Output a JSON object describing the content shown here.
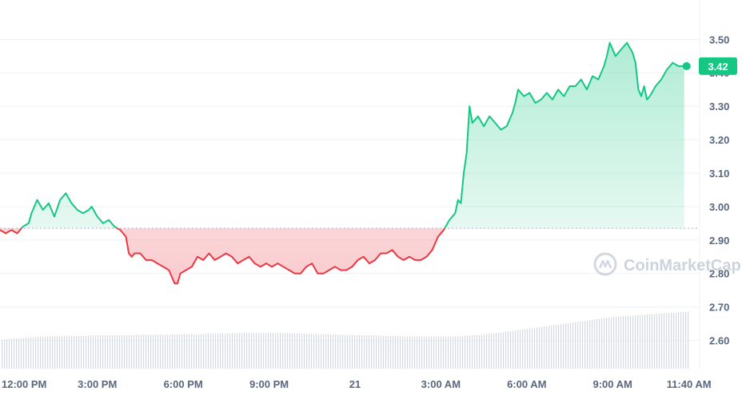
{
  "chart_data": {
    "type": "line",
    "y_ticks": [
      2.6,
      2.7,
      2.8,
      2.9,
      3.0,
      3.1,
      3.2,
      3.3,
      3.4,
      3.5
    ],
    "y_tick_labels": [
      "2.60",
      "2.70",
      "2.80",
      "2.90",
      "3.00",
      "3.10",
      "3.20",
      "3.30",
      "3.40",
      "3.50"
    ],
    "ylim": [
      2.52,
      3.57
    ],
    "x_ticks": [
      {
        "label": "12:00 PM",
        "hour": 0
      },
      {
        "label": "3:00 PM",
        "hour": 3
      },
      {
        "label": "6:00 PM",
        "hour": 6
      },
      {
        "label": "9:00 PM",
        "hour": 9
      },
      {
        "label": "21",
        "hour": 12
      },
      {
        "label": "3:00 AM",
        "hour": 15
      },
      {
        "label": "6:00 AM",
        "hour": 18
      },
      {
        "label": "9:00 AM",
        "hour": 21
      },
      {
        "label": "11:40 AM",
        "hour": 23.667
      }
    ],
    "xlim": [
      -0.4,
      23.9
    ],
    "baseline": 2.935,
    "current_price": 3.42,
    "current_price_label": "3.42",
    "above_color": "#16c784",
    "below_color": "#ea3943",
    "grid": true,
    "price_points": [
      [
        -0.4,
        2.93
      ],
      [
        -0.2,
        2.92
      ],
      [
        0.0,
        2.93
      ],
      [
        0.2,
        2.92
      ],
      [
        0.4,
        2.94
      ],
      [
        0.6,
        2.95
      ],
      [
        0.7,
        2.98
      ],
      [
        0.9,
        3.02
      ],
      [
        1.1,
        2.99
      ],
      [
        1.3,
        3.01
      ],
      [
        1.5,
        2.97
      ],
      [
        1.7,
        3.02
      ],
      [
        1.9,
        3.04
      ],
      [
        2.1,
        3.01
      ],
      [
        2.3,
        2.99
      ],
      [
        2.5,
        2.98
      ],
      [
        2.7,
        2.99
      ],
      [
        2.8,
        3.0
      ],
      [
        3.0,
        2.97
      ],
      [
        3.2,
        2.95
      ],
      [
        3.4,
        2.96
      ],
      [
        3.6,
        2.94
      ],
      [
        3.8,
        2.93
      ],
      [
        4.0,
        2.91
      ],
      [
        4.1,
        2.86
      ],
      [
        4.2,
        2.85
      ],
      [
        4.3,
        2.86
      ],
      [
        4.5,
        2.86
      ],
      [
        4.7,
        2.84
      ],
      [
        4.9,
        2.84
      ],
      [
        5.1,
        2.83
      ],
      [
        5.3,
        2.82
      ],
      [
        5.5,
        2.81
      ],
      [
        5.7,
        2.77
      ],
      [
        5.8,
        2.77
      ],
      [
        5.9,
        2.8
      ],
      [
        6.1,
        2.81
      ],
      [
        6.3,
        2.82
      ],
      [
        6.5,
        2.85
      ],
      [
        6.7,
        2.84
      ],
      [
        6.9,
        2.86
      ],
      [
        7.1,
        2.84
      ],
      [
        7.3,
        2.85
      ],
      [
        7.5,
        2.86
      ],
      [
        7.7,
        2.85
      ],
      [
        7.9,
        2.83
      ],
      [
        8.1,
        2.84
      ],
      [
        8.3,
        2.85
      ],
      [
        8.5,
        2.83
      ],
      [
        8.7,
        2.82
      ],
      [
        8.9,
        2.83
      ],
      [
        9.1,
        2.82
      ],
      [
        9.3,
        2.83
      ],
      [
        9.5,
        2.82
      ],
      [
        9.7,
        2.81
      ],
      [
        9.9,
        2.8
      ],
      [
        10.1,
        2.8
      ],
      [
        10.3,
        2.82
      ],
      [
        10.5,
        2.83
      ],
      [
        10.7,
        2.8
      ],
      [
        10.9,
        2.8
      ],
      [
        11.1,
        2.81
      ],
      [
        11.3,
        2.82
      ],
      [
        11.5,
        2.81
      ],
      [
        11.7,
        2.81
      ],
      [
        11.9,
        2.82
      ],
      [
        12.1,
        2.84
      ],
      [
        12.3,
        2.85
      ],
      [
        12.5,
        2.83
      ],
      [
        12.7,
        2.84
      ],
      [
        12.9,
        2.86
      ],
      [
        13.1,
        2.86
      ],
      [
        13.3,
        2.87
      ],
      [
        13.5,
        2.85
      ],
      [
        13.7,
        2.84
      ],
      [
        13.9,
        2.85
      ],
      [
        14.1,
        2.84
      ],
      [
        14.3,
        2.84
      ],
      [
        14.5,
        2.85
      ],
      [
        14.7,
        2.87
      ],
      [
        14.9,
        2.91
      ],
      [
        15.1,
        2.93
      ],
      [
        15.3,
        2.96
      ],
      [
        15.5,
        2.98
      ],
      [
        15.6,
        3.02
      ],
      [
        15.7,
        3.01
      ],
      [
        15.8,
        3.1
      ],
      [
        15.9,
        3.16
      ],
      [
        16.0,
        3.3
      ],
      [
        16.1,
        3.25
      ],
      [
        16.3,
        3.27
      ],
      [
        16.5,
        3.24
      ],
      [
        16.7,
        3.27
      ],
      [
        16.9,
        3.25
      ],
      [
        17.1,
        3.23
      ],
      [
        17.3,
        3.24
      ],
      [
        17.5,
        3.28
      ],
      [
        17.6,
        3.31
      ],
      [
        17.7,
        3.35
      ],
      [
        17.9,
        3.33
      ],
      [
        18.1,
        3.34
      ],
      [
        18.3,
        3.31
      ],
      [
        18.5,
        3.32
      ],
      [
        18.7,
        3.34
      ],
      [
        18.9,
        3.32
      ],
      [
        19.1,
        3.35
      ],
      [
        19.3,
        3.33
      ],
      [
        19.5,
        3.36
      ],
      [
        19.7,
        3.36
      ],
      [
        19.9,
        3.38
      ],
      [
        20.1,
        3.35
      ],
      [
        20.3,
        3.39
      ],
      [
        20.5,
        3.38
      ],
      [
        20.7,
        3.42
      ],
      [
        20.8,
        3.45
      ],
      [
        20.9,
        3.49
      ],
      [
        21.1,
        3.45
      ],
      [
        21.3,
        3.47
      ],
      [
        21.5,
        3.49
      ],
      [
        21.7,
        3.46
      ],
      [
        21.8,
        3.43
      ],
      [
        21.9,
        3.35
      ],
      [
        22.0,
        3.33
      ],
      [
        22.1,
        3.36
      ],
      [
        22.2,
        3.32
      ],
      [
        22.3,
        3.33
      ],
      [
        22.5,
        3.36
      ],
      [
        22.7,
        3.38
      ],
      [
        22.9,
        3.41
      ],
      [
        23.1,
        3.43
      ],
      [
        23.3,
        3.42
      ],
      [
        23.5,
        3.42
      ]
    ],
    "volume_heights": [
      0.5,
      0.52,
      0.53,
      0.54,
      0.55,
      0.56,
      0.56,
      0.57,
      0.57,
      0.57,
      0.57,
      0.58,
      0.58,
      0.58,
      0.58,
      0.58,
      0.59,
      0.59,
      0.59,
      0.59,
      0.59,
      0.6,
      0.6,
      0.6,
      0.6,
      0.61,
      0.61,
      0.61,
      0.62,
      0.62,
      0.62,
      0.62,
      0.62,
      0.62,
      0.62,
      0.62,
      0.61,
      0.61,
      0.6,
      0.6,
      0.6,
      0.59,
      0.59,
      0.58,
      0.58,
      0.58,
      0.57,
      0.57,
      0.57,
      0.56,
      0.56,
      0.56,
      0.56,
      0.56,
      0.56,
      0.56,
      0.57,
      0.58,
      0.59,
      0.61,
      0.62,
      0.64,
      0.66,
      0.68,
      0.7,
      0.72,
      0.74,
      0.76,
      0.78,
      0.8,
      0.82,
      0.84,
      0.86,
      0.88,
      0.9,
      0.91,
      0.92,
      0.93,
      0.94,
      0.95,
      0.96,
      0.97,
      0.98,
      0.99,
      1.0
    ]
  },
  "watermark": {
    "text": "CoinMarketCap",
    "icon": "coinmarketcap-logo-icon"
  }
}
